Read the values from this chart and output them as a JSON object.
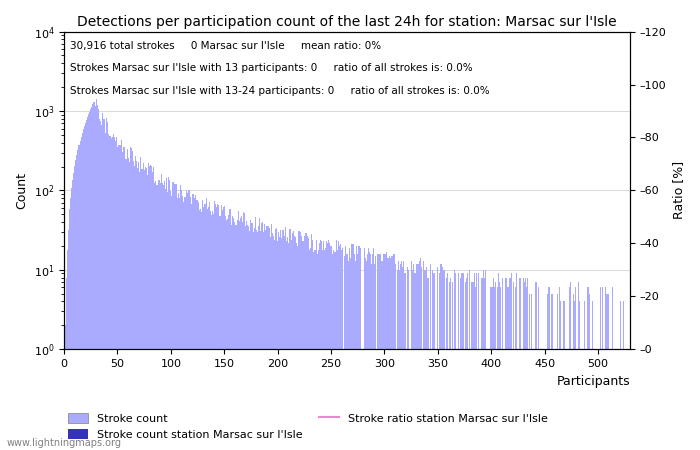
{
  "title": "Detections per participation count of the last 24h for station: Marsac sur l'Isle",
  "xlabel": "Participants",
  "ylabel_left": "Count",
  "ylabel_right": "Ratio [%]",
  "annotation_lines": [
    "30,916 total strokes     0 Marsac sur l'Isle     mean ratio: 0%",
    "Strokes Marsac sur l'Isle with 13 participants: 0     ratio of all strokes is: 0.0%",
    "Strokes Marsac sur l'Isle with 13-24 participants: 0     ratio of all strokes is: 0.0%"
  ],
  "bar_color": "#aaaaff",
  "bar_color_station": "#3333bb",
  "line_color": "#ee88cc",
  "watermark": "www.lightningmaps.org",
  "legend_entries": [
    "Stroke count",
    "Stroke count station Marsac sur l'Isle",
    "Stroke ratio station Marsac sur l'Isle"
  ],
  "xlim": [
    0,
    530
  ],
  "ylim_right": [
    0,
    120
  ],
  "right_yticks": [
    0,
    20,
    40,
    60,
    80,
    100,
    120
  ]
}
